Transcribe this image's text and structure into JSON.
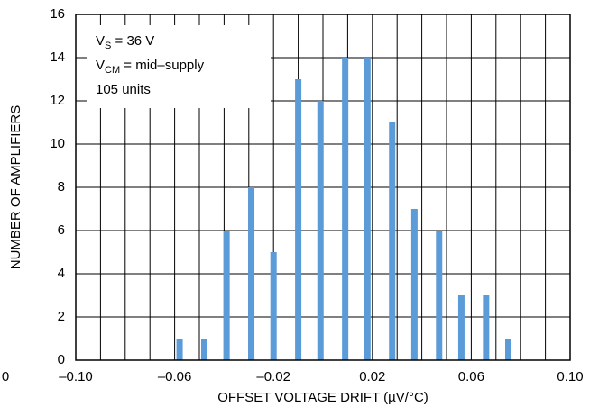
{
  "chart_data": {
    "type": "bar",
    "x_label": "OFFSET VOLTAGE DRIFT (µV/°C)",
    "y_label": "NUMBER OF AMPLIFIERS",
    "x": [
      -0.058,
      -0.048,
      -0.039,
      -0.029,
      -0.02,
      -0.01,
      -0.001,
      0.009,
      0.018,
      0.028,
      0.037,
      0.047,
      0.056,
      0.066,
      0.075
    ],
    "values": [
      1,
      1,
      6,
      8,
      5,
      13,
      12,
      14,
      14,
      11,
      7,
      6,
      3,
      3,
      1
    ],
    "color": "#5b9bd8",
    "xlim": [
      -0.1,
      0.1
    ],
    "xticks": [
      {
        "value": -0.1,
        "label": "–0.10"
      },
      {
        "value": -0.06,
        "label": "–0.06"
      },
      {
        "value": -0.02,
        "label": "–0.02"
      },
      {
        "value": 0.02,
        "label": "0.02"
      },
      {
        "value": 0.06,
        "label": "0.06"
      },
      {
        "value": 0.1,
        "label": "0.10"
      }
    ],
    "x_minor_ticks": [
      -0.09,
      -0.08,
      -0.07,
      -0.05,
      -0.04,
      -0.03,
      -0.01,
      0,
      0.01,
      0.03,
      0.04,
      0.05,
      0.07,
      0.08,
      0.09
    ],
    "ylim": [
      0,
      16
    ],
    "yticks": [
      0,
      2,
      4,
      6,
      8,
      10,
      12,
      14,
      16
    ],
    "grid": true,
    "annotations": [
      {
        "text": "V",
        "sub": "S",
        "rest": " = 36 V"
      },
      {
        "text": "V",
        "sub": "CM",
        "rest": " = mid–supply"
      },
      {
        "text": "105 units"
      }
    ],
    "edge_fragment": "0"
  }
}
